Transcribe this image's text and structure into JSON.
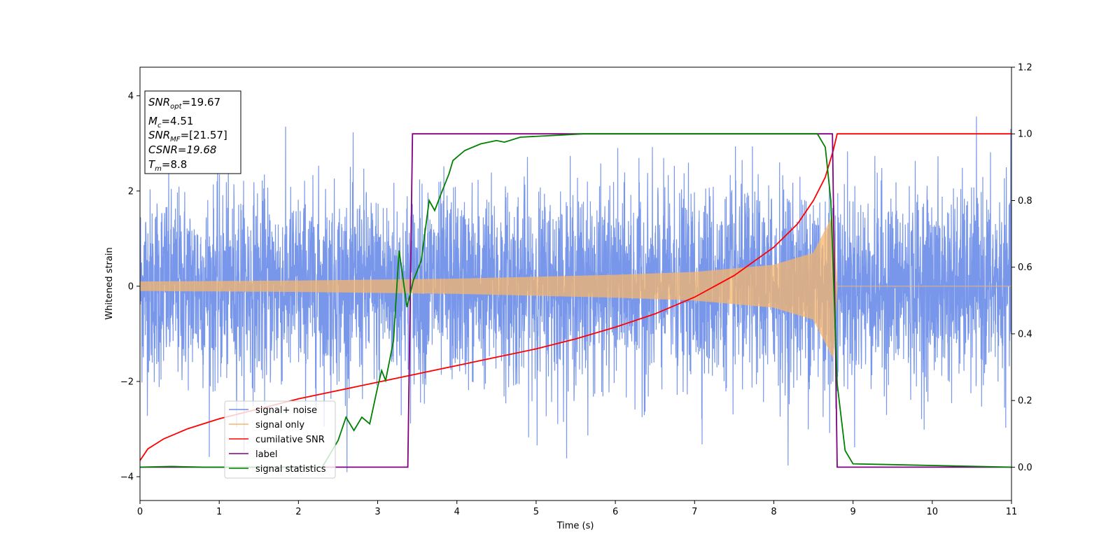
{
  "chart_data": {
    "type": "line",
    "xlabel": "Time (s)",
    "ylabel_left": "Whitened strain",
    "xlim": [
      0,
      11
    ],
    "ylim_left": [
      -4.5,
      4.6
    ],
    "ylim_right": [
      -0.1,
      1.2
    ],
    "x_ticks": [
      0,
      1,
      2,
      3,
      4,
      5,
      6,
      7,
      8,
      9,
      10,
      11
    ],
    "y_ticks_left": [
      -4,
      -2,
      0,
      2,
      4
    ],
    "y_ticks_right": [
      0.0,
      0.2,
      0.4,
      0.6,
      0.8,
      1.0,
      1.2
    ],
    "y_tick_labels_left": [
      "−4",
      "−2",
      "0",
      "2",
      "4"
    ],
    "y_tick_labels_right": [
      "0.0",
      "0.2",
      "0.4",
      "0.6",
      "0.8",
      "1.0",
      "1.2"
    ],
    "grid": false,
    "legend_position": "lower-left",
    "series": [
      {
        "name": "signal+ noise",
        "axis": "left",
        "color": "#6e8ee8",
        "description_values": {
          "noise_std": 1.0,
          "range": [
            -4.1,
            4.0
          ]
        }
      },
      {
        "name": "signal only",
        "axis": "left",
        "color": "#f5b56b",
        "amplitude_envelope": [
          {
            "x": 0.0,
            "amp": 0.1
          },
          {
            "x": 2.0,
            "amp": 0.12
          },
          {
            "x": 4.0,
            "amp": 0.16
          },
          {
            "x": 6.0,
            "amp": 0.24
          },
          {
            "x": 7.0,
            "amp": 0.3
          },
          {
            "x": 8.0,
            "amp": 0.45
          },
          {
            "x": 8.5,
            "amp": 0.7
          },
          {
            "x": 8.75,
            "amp": 1.5
          },
          {
            "x": 8.8,
            "amp": 0.0
          },
          {
            "x": 11.0,
            "amp": 0.0
          }
        ]
      },
      {
        "name": "cumilative SNR",
        "axis": "right",
        "color": "#ff0000",
        "points": [
          [
            0.0,
            0.02
          ],
          [
            0.1,
            0.055
          ],
          [
            0.3,
            0.085
          ],
          [
            0.6,
            0.115
          ],
          [
            1.0,
            0.145
          ],
          [
            1.5,
            0.175
          ],
          [
            2.0,
            0.205
          ],
          [
            2.5,
            0.23
          ],
          [
            3.0,
            0.255
          ],
          [
            3.5,
            0.28
          ],
          [
            4.0,
            0.305
          ],
          [
            4.5,
            0.33
          ],
          [
            5.0,
            0.355
          ],
          [
            5.5,
            0.385
          ],
          [
            6.0,
            0.42
          ],
          [
            6.5,
            0.46
          ],
          [
            7.0,
            0.51
          ],
          [
            7.5,
            0.575
          ],
          [
            8.0,
            0.66
          ],
          [
            8.3,
            0.73
          ],
          [
            8.5,
            0.8
          ],
          [
            8.65,
            0.87
          ],
          [
            8.75,
            0.95
          ],
          [
            8.8,
            1.0
          ],
          [
            9.0,
            1.0
          ],
          [
            11.0,
            1.0
          ]
        ]
      },
      {
        "name": "label",
        "axis": "right",
        "color": "#800080",
        "points": [
          [
            0.0,
            0.0
          ],
          [
            3.38,
            0.0
          ],
          [
            3.44,
            1.0
          ],
          [
            8.74,
            1.0
          ],
          [
            8.8,
            0.0
          ],
          [
            11.0,
            0.0
          ]
        ]
      },
      {
        "name": "signal statistics",
        "axis": "right",
        "color": "#008000",
        "points": [
          [
            0.0,
            0.0
          ],
          [
            0.4,
            0.002
          ],
          [
            0.8,
            0.0
          ],
          [
            1.5,
            0.0
          ],
          [
            2.0,
            0.0
          ],
          [
            2.3,
            0.0
          ],
          [
            2.5,
            0.08
          ],
          [
            2.6,
            0.15
          ],
          [
            2.7,
            0.11
          ],
          [
            2.8,
            0.15
          ],
          [
            2.9,
            0.13
          ],
          [
            3.0,
            0.24
          ],
          [
            3.05,
            0.29
          ],
          [
            3.1,
            0.26
          ],
          [
            3.2,
            0.38
          ],
          [
            3.27,
            0.65
          ],
          [
            3.3,
            0.6
          ],
          [
            3.37,
            0.48
          ],
          [
            3.45,
            0.56
          ],
          [
            3.55,
            0.62
          ],
          [
            3.65,
            0.8
          ],
          [
            3.72,
            0.77
          ],
          [
            3.8,
            0.82
          ],
          [
            3.9,
            0.88
          ],
          [
            3.95,
            0.92
          ],
          [
            4.1,
            0.95
          ],
          [
            4.3,
            0.97
          ],
          [
            4.5,
            0.98
          ],
          [
            4.6,
            0.975
          ],
          [
            4.8,
            0.99
          ],
          [
            5.2,
            0.995
          ],
          [
            5.6,
            1.0
          ],
          [
            6.0,
            1.0
          ],
          [
            7.0,
            1.0
          ],
          [
            8.0,
            1.0
          ],
          [
            8.55,
            1.0
          ],
          [
            8.65,
            0.96
          ],
          [
            8.72,
            0.8
          ],
          [
            8.8,
            0.25
          ],
          [
            8.9,
            0.05
          ],
          [
            9.0,
            0.01
          ],
          [
            11.0,
            0.0
          ]
        ]
      }
    ]
  },
  "annotation": {
    "snr_opt": "=19.67",
    "mc": "=4.51",
    "snr_mf": "=[21.57]",
    "csnr": "CSNR=19.68",
    "tm": "=8.8"
  },
  "legend": {
    "entries": [
      "signal+ noise",
      "signal only",
      "cumilative SNR",
      "label",
      "signal statistics"
    ]
  }
}
